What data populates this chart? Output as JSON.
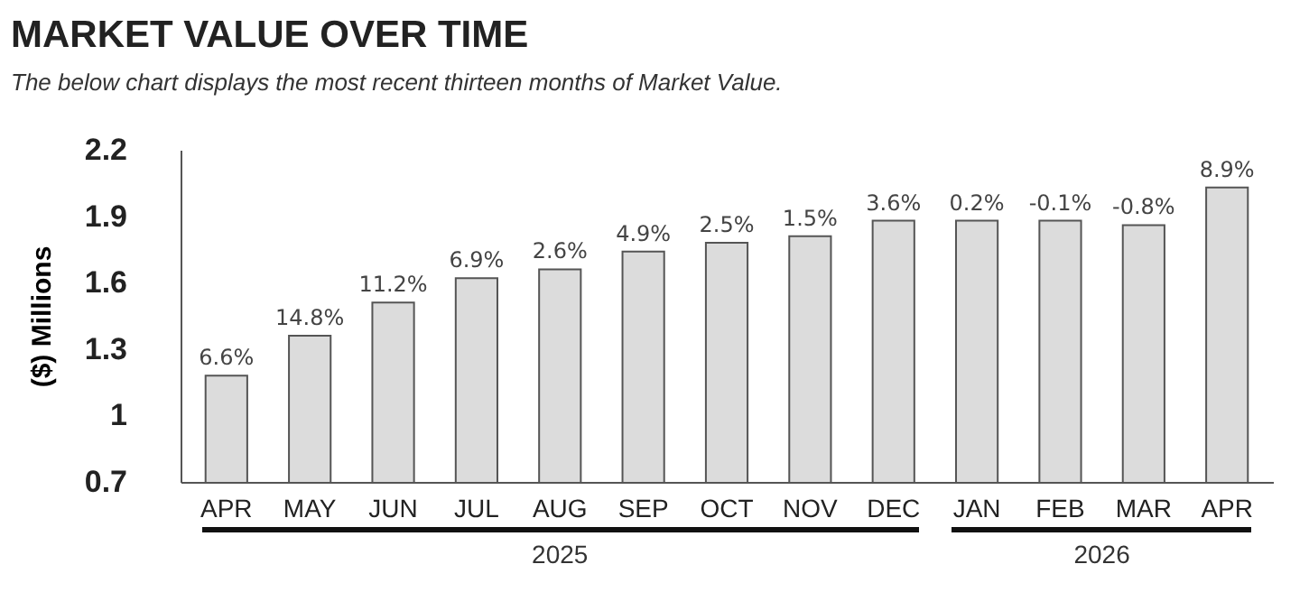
{
  "chart_data": {
    "type": "bar",
    "title": "MARKET VALUE OVER TIME",
    "subtitle": "The below chart displays the most recent thirteen months of Market Value.",
    "ylabel": "($)  Millions",
    "categories": [
      "APR",
      "MAY",
      "JUN",
      "JUL",
      "AUG",
      "SEP",
      "OCT",
      "NOV",
      "DEC",
      "JAN",
      "FEB",
      "MAR",
      "APR"
    ],
    "values": [
      1.18,
      1.36,
      1.51,
      1.62,
      1.66,
      1.74,
      1.78,
      1.81,
      1.88,
      1.88,
      1.88,
      1.86,
      2.03
    ],
    "color": "#dcdcdc",
    "ylim": [
      0.7,
      2.2
    ],
    "yticks": [
      0.7,
      1,
      1.3,
      1.6,
      1.9,
      2.2
    ],
    "grid": false,
    "annotations": [
      {
        "text": "6.6%",
        "x": "APR",
        "y": 1.18
      },
      {
        "text": "14.8%",
        "x": "MAY",
        "y": 1.36
      },
      {
        "text": "11.2%",
        "x": "JUN",
        "y": 1.51
      },
      {
        "text": "6.9%",
        "x": "JUL",
        "y": 1.62
      },
      {
        "text": "2.6%",
        "x": "AUG",
        "y": 1.66
      },
      {
        "text": "4.9%",
        "x": "SEP",
        "y": 1.74
      },
      {
        "text": "2.5%",
        "x": "OCT",
        "y": 1.78
      },
      {
        "text": "1.5%",
        "x": "NOV",
        "y": 1.81
      },
      {
        "text": "3.6%",
        "x": "DEC",
        "y": 1.88
      },
      {
        "text": "0.2%",
        "x": "JAN",
        "y": 1.88
      },
      {
        "text": "-0.1%",
        "x": "FEB",
        "y": 1.88
      },
      {
        "text": "-0.8%",
        "x": "MAR",
        "y": 1.86
      },
      {
        "text": "8.9%",
        "y": 2.03
      },
      "2025",
      "2026"
    ]
  }
}
